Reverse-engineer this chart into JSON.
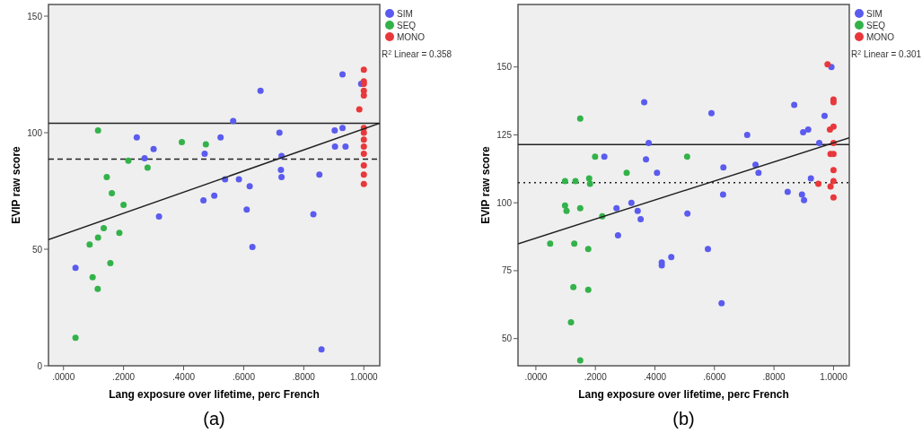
{
  "chart_data": [
    {
      "type": "scatter",
      "title": "(a)",
      "xlabel": "Lang exposure over lifetime, perc French",
      "ylabel": "EVIP raw score",
      "xlim": [
        -0.05,
        1.053
      ],
      "ylim": [
        0,
        155
      ],
      "xticks": [
        {
          "value": 0,
          "label": ".0000"
        },
        {
          "value": 0.2,
          "label": ".2000"
        },
        {
          "value": 0.4,
          "label": ".4000"
        },
        {
          "value": 0.6,
          "label": ".6000"
        },
        {
          "value": 0.8,
          "label": ".8000"
        },
        {
          "value": 1,
          "label": "1.0000"
        }
      ],
      "yticks": [
        0,
        50,
        100,
        150
      ],
      "marker": "circle",
      "legend": "top right",
      "annotations": [
        "R$^{2}$ Linear = 0.358"
      ],
      "ref_lines": [
        {
          "axis": "y",
          "value": 104,
          "label": null,
          "color": "#222222",
          "line_style": "solid"
        },
        {
          "axis": "y",
          "value": 88.7,
          "label": null,
          "color": "#222222",
          "line_style": "dashed"
        }
      ],
      "series": [
        {
          "name": "SIM",
          "color": "#5b5bef",
          "x": [
            0.244,
            0.27,
            0.3,
            0.318,
            0.04,
            0.47,
            0.466,
            0.502,
            0.523,
            0.538,
            0.565,
            0.584,
            0.62,
            0.61,
            0.629,
            0.656,
            0.719,
            0.726,
            0.724,
            0.726,
            0.832,
            0.852,
            0.859,
            0.903,
            0.929,
            0.904,
            0.939,
            0.929,
            0.991
          ],
          "values": [
            98,
            89,
            93,
            64,
            42,
            91,
            71,
            73,
            98,
            80,
            105,
            80,
            77,
            67,
            51,
            118,
            100,
            90,
            84,
            81,
            65,
            82,
            7,
            101,
            102,
            94,
            94,
            125,
            121
          ]
        },
        {
          "name": "SEQ",
          "color": "#33b24a",
          "x": [
            0.115,
            0.394,
            0.474,
            0.216,
            0.28,
            0.144,
            0.161,
            0.2,
            0.134,
            0.115,
            0.186,
            0.087,
            0.156,
            0.097,
            0.114,
            0.04
          ],
          "values": [
            101,
            96,
            95,
            88,
            85,
            81,
            74,
            69,
            59,
            55,
            57,
            52,
            44,
            38,
            33,
            12
          ]
        },
        {
          "name": "MONO",
          "color": "#e8383b",
          "x": [
            1,
            1,
            1,
            1,
            1,
            0.985,
            1,
            1,
            1,
            1,
            1,
            1,
            1,
            1
          ],
          "values": [
            127,
            122,
            121,
            118,
            116,
            110,
            102,
            100,
            97,
            94,
            91,
            86,
            82,
            78
          ]
        },
        {
          "type": "line",
          "marker": "none",
          "color": "#222222",
          "x": [
            -0.05,
            1.053
          ],
          "values": [
            54.1,
            104.1
          ]
        }
      ]
    },
    {
      "type": "scatter",
      "title": "(b)",
      "xlabel": "Lang exposure over lifetime, perc French",
      "ylabel": "EVIP raw score",
      "xlim": [
        -0.06,
        1.053
      ],
      "ylim": [
        40,
        173
      ],
      "xticks": [
        {
          "value": 0,
          "label": ".0000"
        },
        {
          "value": 0.2,
          "label": ".2000"
        },
        {
          "value": 0.4,
          "label": ".4000"
        },
        {
          "value": 0.6,
          "label": ".6000"
        },
        {
          "value": 0.8,
          "label": ".8000"
        },
        {
          "value": 1,
          "label": "1.0000"
        }
      ],
      "yticks": [
        50,
        75,
        100,
        125,
        150
      ],
      "marker": "circle",
      "legend": "top right",
      "annotations": [
        "R$^{2}$ Linear = 0.301"
      ],
      "ref_lines": [
        {
          "axis": "y",
          "value": 121.4,
          "label": null,
          "color": "#222222",
          "line_style": "solid"
        },
        {
          "axis": "y",
          "value": 107.4,
          "label": null,
          "color": "#222222",
          "line_style": "dotted"
        }
      ],
      "series": [
        {
          "name": "SIM",
          "color": "#5b5bef",
          "x": [
            0.364,
            0.379,
            0.37,
            0.23,
            0.407,
            0.321,
            0.271,
            0.342,
            0.352,
            0.276,
            0.423,
            0.423,
            0.455,
            0.59,
            0.578,
            0.509,
            0.624,
            0.63,
            0.629,
            0.71,
            0.738,
            0.748,
            0.846,
            0.868,
            0.894,
            0.901,
            0.898,
            0.915,
            0.924,
            0.952,
            0.97,
            0.993
          ],
          "values": [
            137,
            122,
            116,
            117,
            111,
            100,
            98,
            97,
            94,
            88,
            78,
            77,
            80,
            133,
            83,
            96,
            63,
            113,
            103,
            125,
            114,
            111,
            104,
            136,
            103,
            101,
            126,
            127,
            109,
            122,
            132,
            150
          ]
        },
        {
          "name": "SEQ",
          "color": "#33b24a",
          "x": [
            0.149,
            0.199,
            0.305,
            0.098,
            0.133,
            0.179,
            0.182,
            0.098,
            0.103,
            0.149,
            0.223,
            0.048,
            0.129,
            0.176,
            0.126,
            0.176,
            0.118,
            0.149,
            0.508
          ],
          "values": [
            131,
            117,
            111,
            108,
            108,
            109,
            107,
            99,
            97,
            98,
            95,
            85,
            85,
            83,
            69,
            68,
            56,
            42,
            117
          ]
        },
        {
          "name": "MONO",
          "color": "#e8383b",
          "x": [
            0.98,
            1,
            1,
            0.988,
            1,
            1,
            0.99,
            1,
            1,
            1,
            0.99,
            0.949,
            1
          ],
          "values": [
            151,
            138,
            137,
            127,
            128,
            122,
            118,
            118,
            112,
            108,
            106,
            107,
            102
          ]
        },
        {
          "type": "line",
          "marker": "none",
          "color": "#222222",
          "x": [
            -0.06,
            1.053
          ],
          "values": [
            84.9,
            123.9
          ]
        }
      ]
    }
  ]
}
